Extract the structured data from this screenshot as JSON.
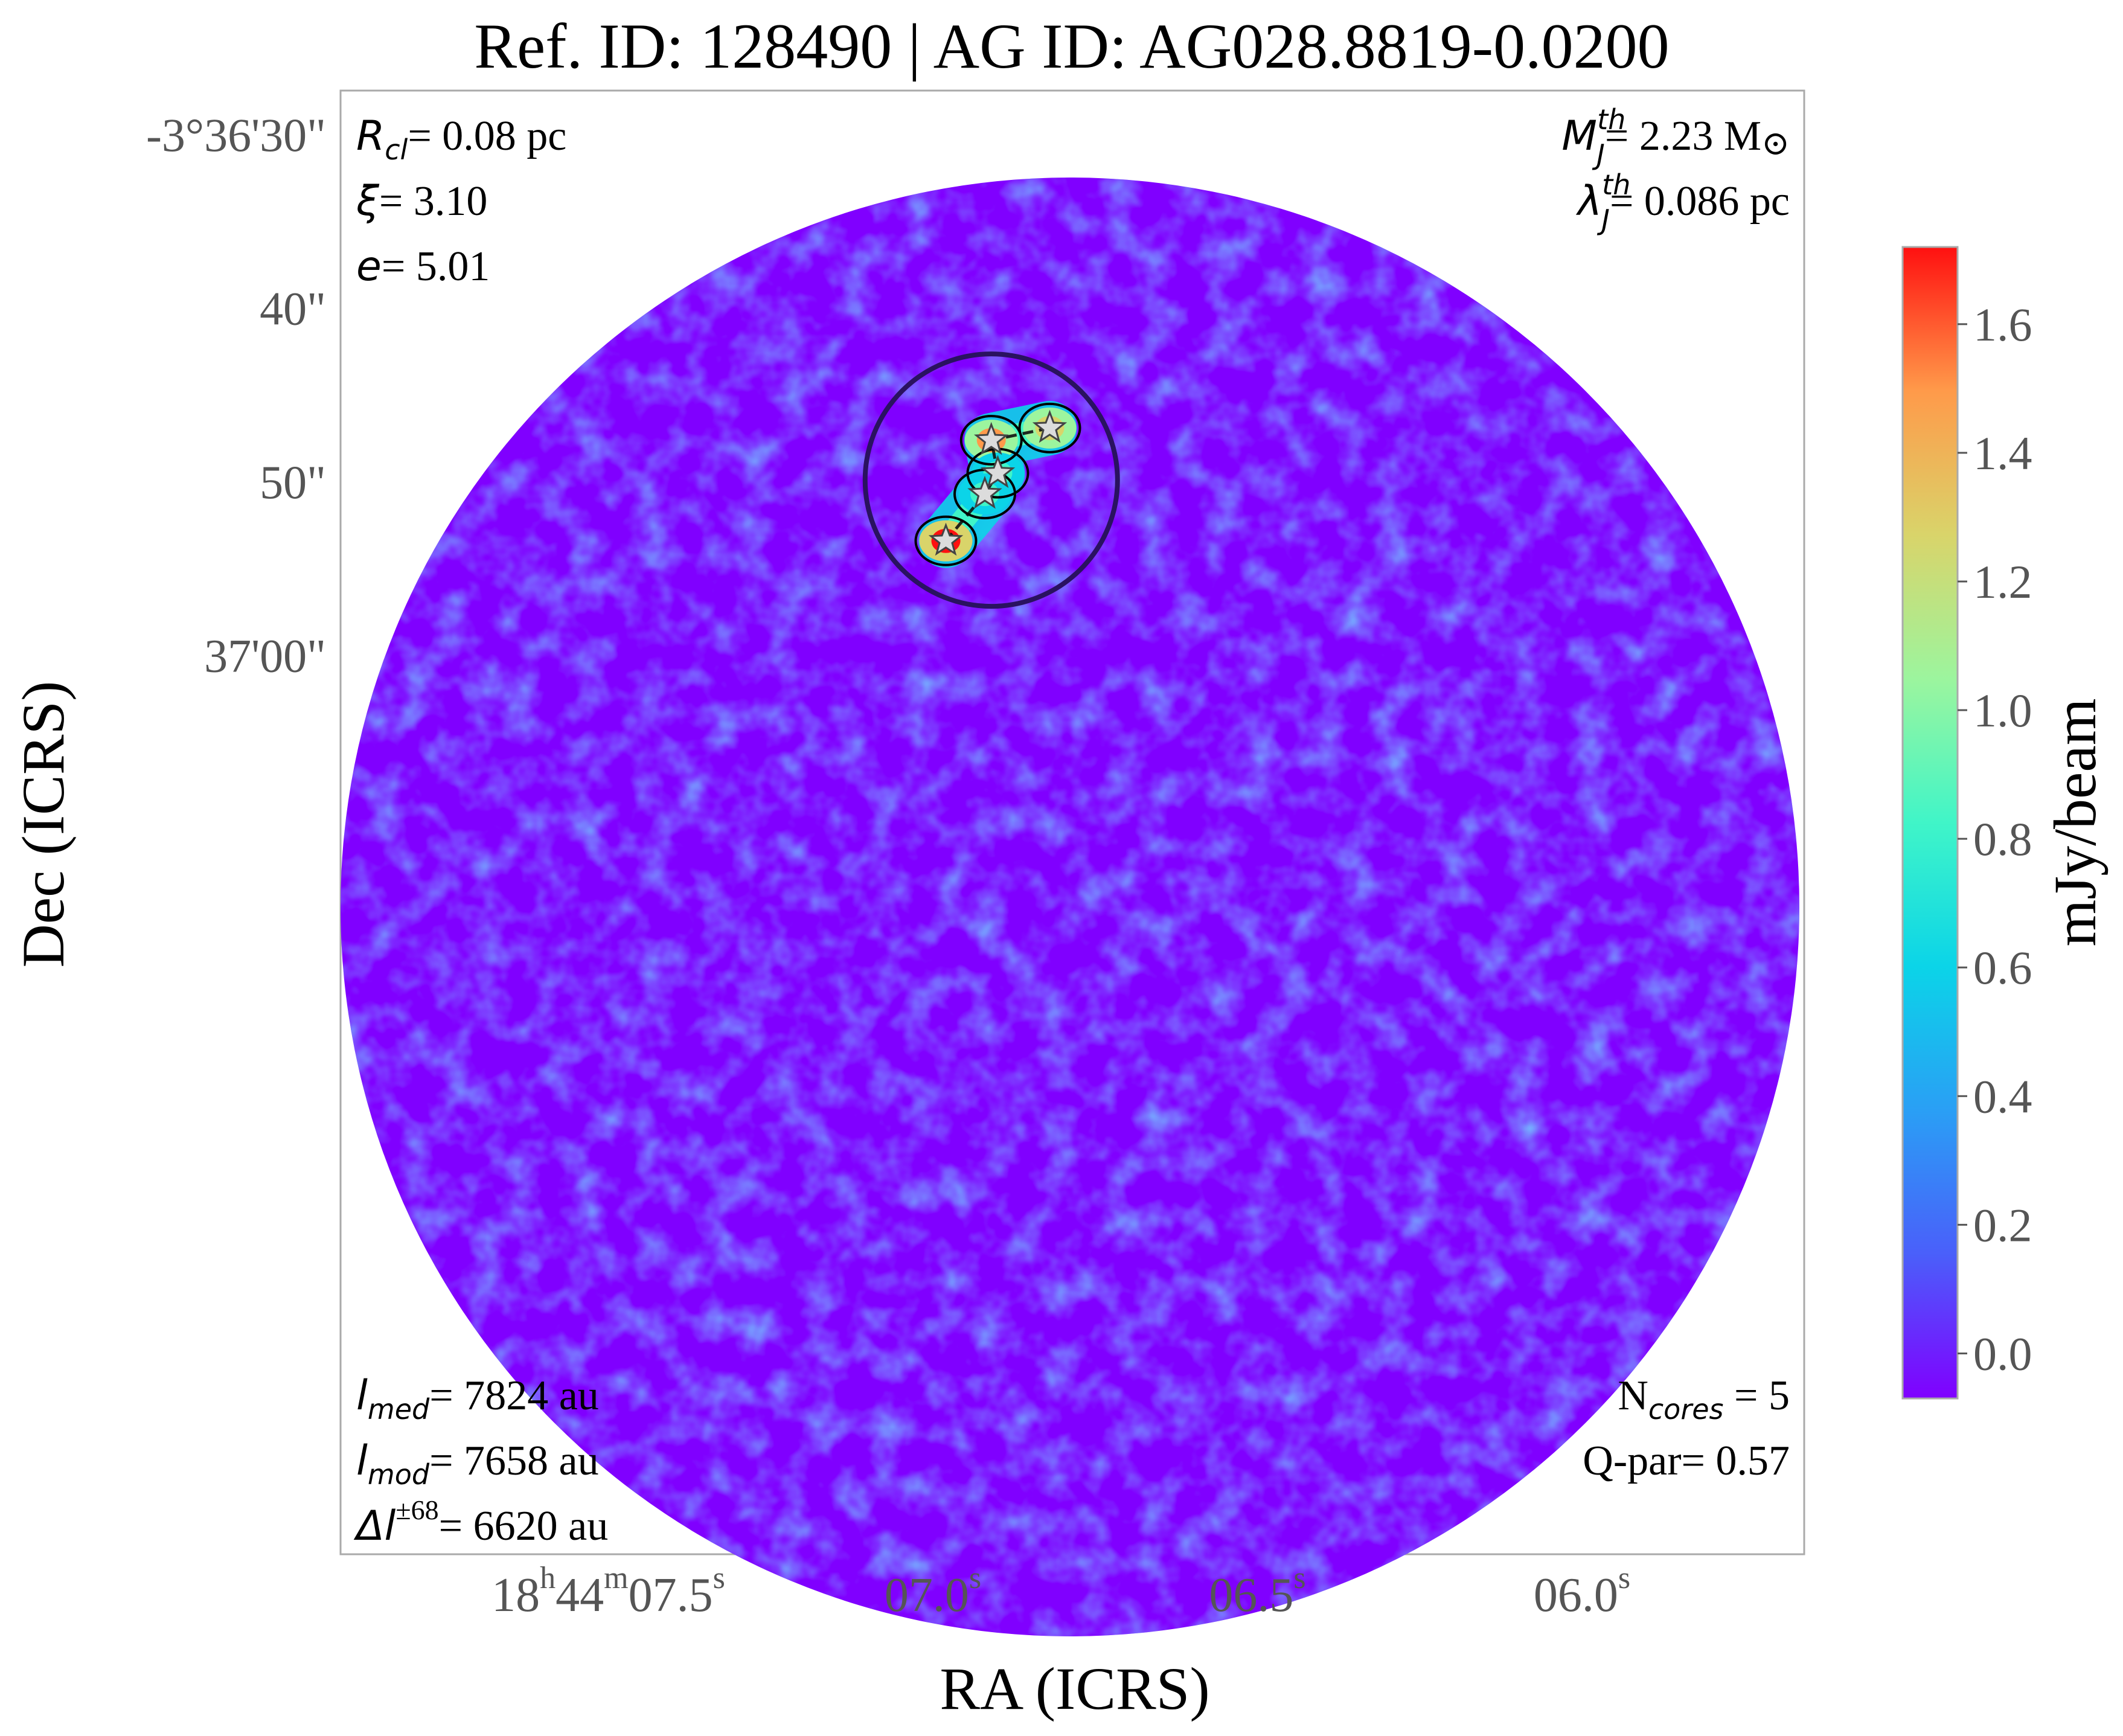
{
  "chart_data": {
    "type": "heatmap",
    "title": "Ref. ID: 128490 | AG ID: AG028.8819-0.0200",
    "xlabel": "RA (ICRS)",
    "ylabel": "Dec (ICRS)",
    "colorbar": {
      "label": "mJy/beam",
      "colormap": "rainbow",
      "range": [
        -0.07,
        1.72
      ],
      "ticks": [
        {
          "value": 0.0,
          "label": "0.0"
        },
        {
          "value": 0.2,
          "label": "0.2"
        },
        {
          "value": 0.4,
          "label": "0.4"
        },
        {
          "value": 0.6,
          "label": "0.6"
        },
        {
          "value": 0.8,
          "label": "0.8"
        },
        {
          "value": 1.0,
          "label": "1.0"
        },
        {
          "value": 1.2,
          "label": "1.2"
        },
        {
          "value": 1.4,
          "label": "1.4"
        },
        {
          "value": 1.6,
          "label": "1.6"
        }
      ]
    },
    "x_ticks": [
      {
        "value": 7.5,
        "base": "18",
        "sup1": "h",
        "mid": "44",
        "sup2": "m",
        "tail": "07.5",
        "sup3": "s"
      },
      {
        "value": 7.0,
        "base": "07.0",
        "sup1": "s"
      },
      {
        "value": 6.5,
        "base": "06.5",
        "sup1": "s"
      },
      {
        "value": 6.0,
        "base": "06.0",
        "sup1": "s"
      }
    ],
    "y_ticks": [
      {
        "value": 30,
        "label": "-3°36'30\""
      },
      {
        "value": 40,
        "label": "40\""
      },
      {
        "value": 50,
        "label": "50\""
      },
      {
        "value": 60,
        "label": "37'00\""
      }
    ],
    "annotations": {
      "top_left": [
        {
          "sym": "R",
          "sub": "cl",
          "text": "= 0.08 pc"
        },
        {
          "sym": "ξ",
          "text": "= 3.10"
        },
        {
          "sym": "e",
          "text": "= 5.01"
        }
      ],
      "top_right": [
        {
          "sym": "M",
          "sup": "th",
          "sub": "J",
          "text": "= 2.23 M",
          "sun": "⊙"
        },
        {
          "sym": "λ",
          "sup": "th",
          "sub": "J",
          "text": "= 0.086 pc"
        }
      ],
      "bottom_left": [
        {
          "sym": "l",
          "sub": "med",
          "text": "= 7824 au"
        },
        {
          "sym": "l",
          "sub": "mod",
          "text": "= 7658 au"
        },
        {
          "sym": "Δl",
          "sup": "±68",
          "text": "= 6620 au"
        }
      ],
      "bottom_right": [
        {
          "prefix": "N",
          "sub": "cores",
          "text": " = 5"
        },
        {
          "prefix": "Q-par",
          "text": "= 0.57"
        }
      ]
    },
    "cores": [
      {
        "ra_s": 6.82,
        "dec": 47.0,
        "peak": 1.35
      },
      {
        "ra_s": 6.91,
        "dec": 47.7,
        "peak": 1.5
      },
      {
        "ra_s": 6.9,
        "dec": 49.6,
        "peak": 0.9
      },
      {
        "ra_s": 6.92,
        "dec": 50.8,
        "peak": 0.8
      },
      {
        "ra_s": 6.98,
        "dec": 53.5,
        "peak": 1.65
      }
    ],
    "clump_circle": {
      "center_ra_s": 6.91,
      "center_dec": 50.0,
      "radius_arcsec": 3.8
    }
  }
}
